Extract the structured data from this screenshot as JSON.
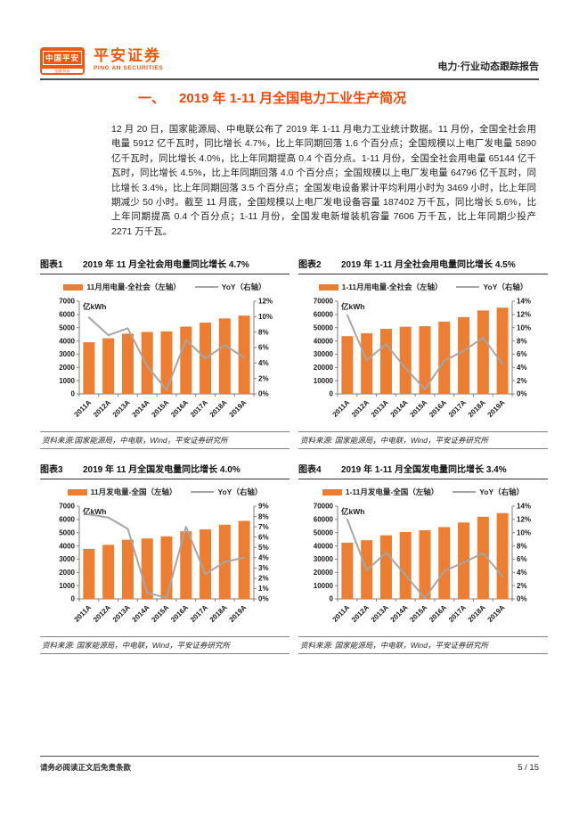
{
  "theme": {
    "accent": "#f1570e",
    "section_title_color": "#f44708",
    "bar_color": "#ed7d31",
    "line_color": "#a6a6a6",
    "axis_color": "#7f7f7f",
    "axis_text_color": "#1a1a1a"
  },
  "header": {
    "logo": {
      "line1": "中国平安",
      "line2": "金融·科技"
    },
    "brand_cn": "平安证券",
    "brand_en": "PING AN SECURITIES",
    "report_type": "电力·行业动态跟踪报告"
  },
  "section": {
    "number": "一、",
    "title": "2019 年 1-11 月全国电力工业生产简况"
  },
  "body_paragraph": "12 月 20 日，国家能源局、中电联公布了 2019 年 1-11 月电力工业统计数据。11 月份，全国全社会用电量 5912 亿千瓦时，同比增长 4.7%，比上年同期回落 1.6 个百分点；全国规模以上电厂发电量 5890 亿千瓦时，同比增长 4.0%，比上年同期提高 0.4 个百分点。1-11 月份，全国全社会用电量 65144 亿千瓦时，同比增长 4.5%，比上年同期回落 4.0 个百分点；全国规模以上电厂发电量 64796 亿千瓦时，同比增长 3.4%，比上年同期回落 3.5 个百分点；全国发电设备累计平均利用小时为 3469 小时，比上年同期减少 50 小时。截至 11 月底，全国规模以上电厂发电设备容量 187402 万千瓦，同比增长 5.6%，比上年同期提高 0.4 个百分点；1-11 月份，全国发电新增装机容量 7606 万千瓦，比上年同期少投产 2271 万千瓦。",
  "footer": {
    "disclaimer": "请务必阅读正文后免责条款",
    "page_number": "5 / 15"
  },
  "chart_data": [
    {
      "figure_label": "图表1",
      "title": "2019 年 11 月全社会用电量同比增长 4.7%",
      "type": "bar",
      "categories": [
        "2011A",
        "2012A",
        "2013A",
        "2014A",
        "2015A",
        "2016A",
        "2017A",
        "2018A",
        "2019A"
      ],
      "series": [
        {
          "name": "11月用电量-全社会（左轴）",
          "type": "bar",
          "axis": "left",
          "values": [
            3900,
            4200,
            4550,
            4680,
            4720,
            5080,
            5380,
            5700,
            5912
          ]
        },
        {
          "name": "YoY（右轴）",
          "type": "line",
          "axis": "right",
          "values": [
            9.9,
            7.6,
            8.5,
            3.6,
            0.5,
            7.0,
            4.6,
            6.3,
            4.7
          ]
        }
      ],
      "left_axis": {
        "unit": "亿kWh",
        "min": 0,
        "max": 7000,
        "step": 1000
      },
      "right_axis": {
        "min": 0,
        "max": 12,
        "step": 2,
        "suffix": "%"
      },
      "grid": false,
      "legend_position": "top",
      "source": "资料来源:国家能源局，中电联，Wind，平安证券研究所"
    },
    {
      "figure_label": "图表2",
      "title": "2019 年 1-11 月全社会用电量同比增长 4.5%",
      "type": "bar",
      "categories": [
        "2011A",
        "2012A",
        "2013A",
        "2014A",
        "2015A",
        "2016A",
        "2017A",
        "2018A",
        "2019A"
      ],
      "series": [
        {
          "name": "1-11月用电量-全社会（左轴）",
          "type": "bar",
          "axis": "left",
          "values": [
            43600,
            45800,
            49100,
            50700,
            51100,
            54600,
            58000,
            63000,
            65144
          ]
        },
        {
          "name": "YoY（右轴）",
          "type": "line",
          "axis": "right",
          "values": [
            11.9,
            5.1,
            7.5,
            3.9,
            0.7,
            5.0,
            6.5,
            8.5,
            4.5
          ]
        }
      ],
      "left_axis": {
        "unit": "亿kWh",
        "min": 0,
        "max": 70000,
        "step": 10000
      },
      "right_axis": {
        "min": 0,
        "max": 14,
        "step": 2,
        "suffix": "%"
      },
      "grid": false,
      "legend_position": "top",
      "source": "资料来源: 国家能源局，中电联，Wind，平安证券研究所"
    },
    {
      "figure_label": "图表3",
      "title": "2019 年 11 月全国发电量同比增长 4.0%",
      "type": "bar",
      "categories": [
        "2011A",
        "2012A",
        "2013A",
        "2014A",
        "2015A",
        "2016A",
        "2017A",
        "2018A",
        "2019A"
      ],
      "series": [
        {
          "name": "11月发电量-全国（左轴）",
          "type": "bar",
          "axis": "left",
          "values": [
            3780,
            4080,
            4470,
            4560,
            4720,
            5100,
            5250,
            5600,
            5890
          ]
        },
        {
          "name": "YoY（右轴）",
          "type": "line",
          "axis": "right",
          "values": [
            8.2,
            7.9,
            6.8,
            0.6,
            0.1,
            7.0,
            2.4,
            3.6,
            4.0
          ]
        }
      ],
      "left_axis": {
        "unit": "亿kWh",
        "min": 0,
        "max": 7000,
        "step": 1000
      },
      "right_axis": {
        "min": 0,
        "max": 9,
        "step": 1,
        "suffix": "%"
      },
      "grid": false,
      "legend_position": "top",
      "source": "资料来源: 国家能源局，中电联，Wind，平安证券研究所"
    },
    {
      "figure_label": "图表4",
      "title": "2019 年 1-11 月全国发电量同比增长 3.4%",
      "type": "bar",
      "categories": [
        "2011A",
        "2012A",
        "2013A",
        "2014A",
        "2015A",
        "2016A",
        "2017A",
        "2018A",
        "2019A"
      ],
      "series": [
        {
          "name": "1-11月发电量-全国（左轴）",
          "type": "bar",
          "axis": "left",
          "values": [
            42500,
            44300,
            48000,
            50500,
            51800,
            54200,
            57700,
            62000,
            64796
          ]
        },
        {
          "name": "YoY（右轴）",
          "type": "line",
          "axis": "right",
          "values": [
            12.0,
            4.3,
            7.0,
            3.6,
            0.1,
            4.2,
            5.5,
            6.9,
            3.4
          ]
        }
      ],
      "left_axis": {
        "unit": "亿kWh",
        "min": 0,
        "max": 70000,
        "step": 10000
      },
      "right_axis": {
        "min": 0,
        "max": 14,
        "step": 2,
        "suffix": "%"
      },
      "grid": false,
      "legend_position": "top",
      "source": "资料来源: 国家能源局，中电联，Wind，平安证券研究所"
    }
  ]
}
